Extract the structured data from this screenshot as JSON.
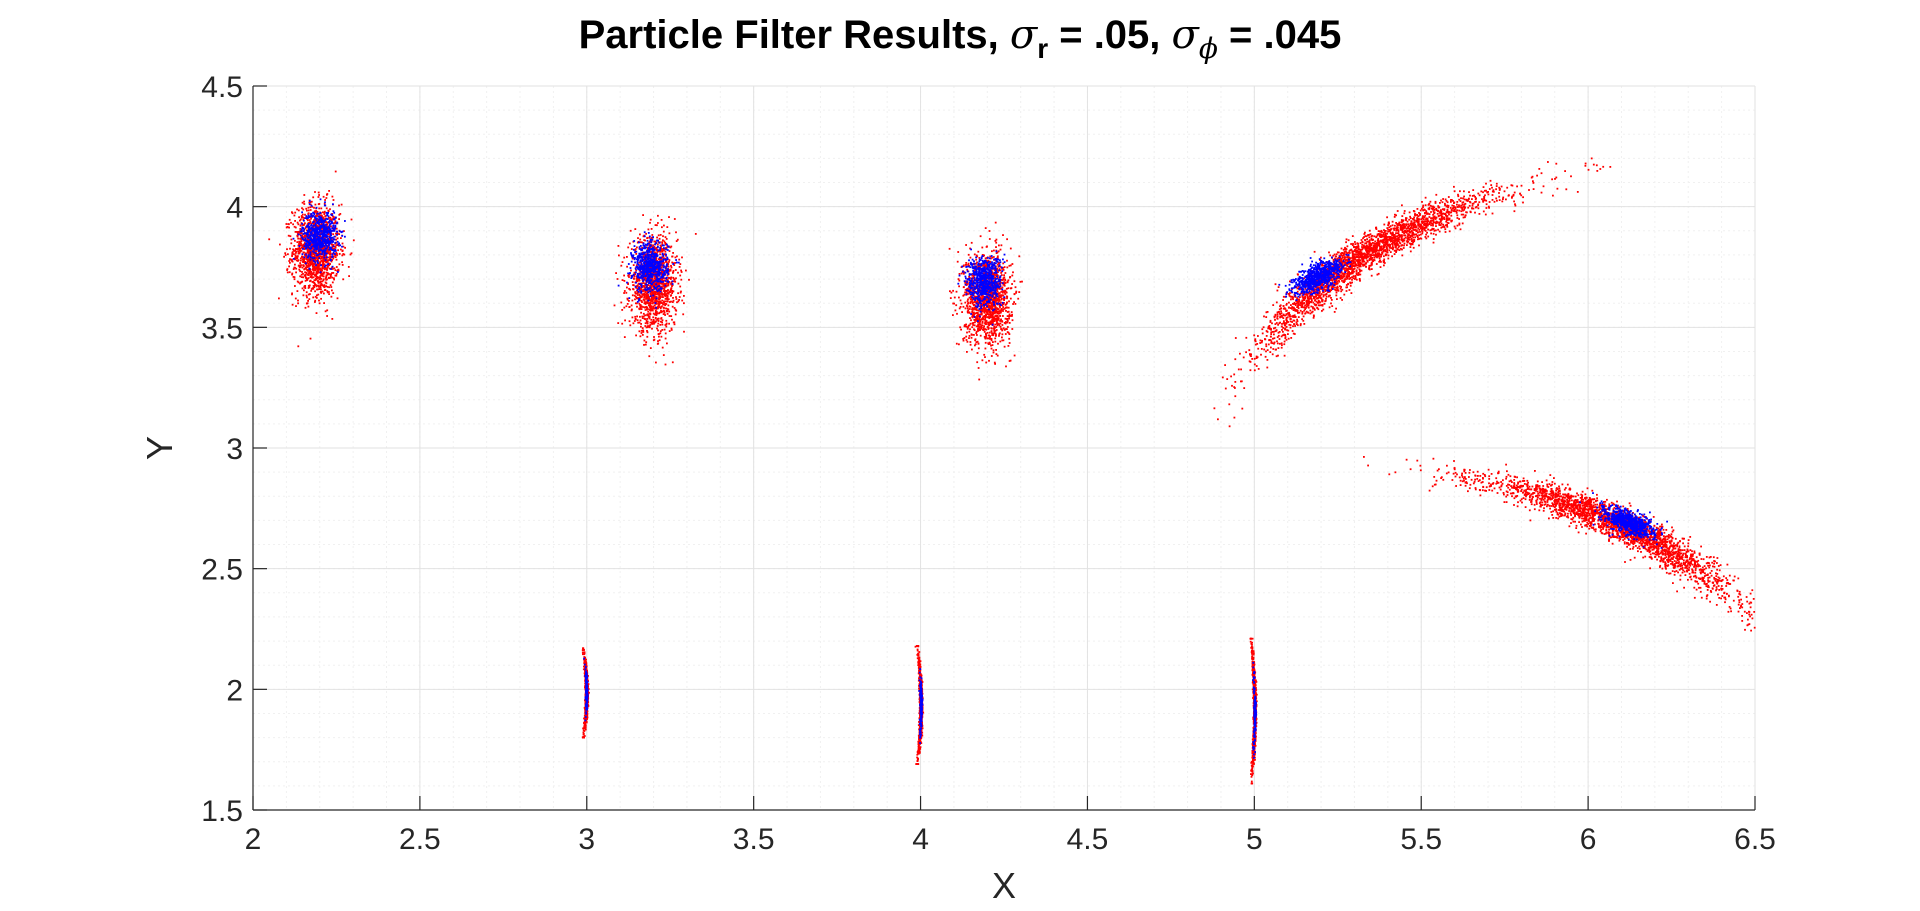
{
  "chart_data": {
    "type": "scatter",
    "title": {
      "prefix": "Particle Filter Results, ",
      "sigma": "σ",
      "sub_r": "r",
      "mid": " = .05, ",
      "sigma2": "σ",
      "sub_phi": "ϕ",
      "suffix": " = .045"
    },
    "xlabel": "X",
    "ylabel": "Y",
    "xlim": [
      2,
      6.5
    ],
    "ylim": [
      1.5,
      4.5
    ],
    "xticks": [
      "2",
      "2.5",
      "3",
      "3.5",
      "4",
      "4.5",
      "5",
      "5.5",
      "6",
      "6.5"
    ],
    "yticks": [
      "1.5",
      "2",
      "2.5",
      "3",
      "3.5",
      "4",
      "4.5"
    ],
    "grid": true,
    "minor_grid": true,
    "series_colors": {
      "prior_particles": "#ff0000",
      "posterior_particles": "#0000ff"
    },
    "clusters": [
      {
        "kind": "blob",
        "center": [
          2.19,
          3.82
        ],
        "sx": 0.035,
        "sy": 0.095,
        "tilt_deg": 0
      },
      {
        "kind": "blob",
        "center": [
          3.2,
          3.68
        ],
        "sx": 0.035,
        "sy": 0.095,
        "tilt_deg": 0
      },
      {
        "kind": "blob",
        "center": [
          4.2,
          3.62
        ],
        "sx": 0.035,
        "sy": 0.095,
        "tilt_deg": 0
      },
      {
        "kind": "arc",
        "center": [
          5.33,
          3.8
        ],
        "along": 0.24,
        "across": 0.03,
        "angle_deg": 42,
        "bend": -0.35
      },
      {
        "kind": "arc",
        "center": [
          6.1,
          2.68
        ],
        "along": 0.22,
        "across": 0.03,
        "angle_deg": -33,
        "bend": -0.35
      },
      {
        "kind": "thin_arc",
        "x": 2.99,
        "y_range": [
          1.8,
          2.17
        ],
        "bulge": 0.01
      },
      {
        "kind": "thin_arc",
        "x": 3.99,
        "y_range": [
          1.69,
          2.18
        ],
        "bulge": 0.012
      },
      {
        "kind": "thin_arc",
        "x": 4.99,
        "y_range": [
          1.61,
          2.21
        ],
        "bulge": 0.012
      }
    ],
    "posterior_centers": [
      [
        2.2,
        3.88
      ],
      [
        3.19,
        3.75
      ],
      [
        4.19,
        3.69
      ],
      [
        5.19,
        3.71
      ],
      [
        6.12,
        2.69
      ],
      [
        3.0,
        2.0
      ],
      [
        4.0,
        1.93
      ],
      [
        5.0,
        1.9
      ]
    ]
  }
}
